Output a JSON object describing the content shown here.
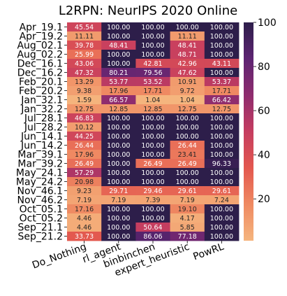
{
  "chart_data": {
    "type": "heatmap",
    "title": "L2RPN: NeurIPS 2020 Online",
    "xlabel": "",
    "ylabel": "",
    "columns": [
      "Do_Nothing",
      "rl_agent",
      "binbinchen",
      "expert_heuristic",
      "PowRL"
    ],
    "rows": [
      "Apr_19.1",
      "Apr_19.2",
      "Aug_02.1",
      "Aug_02.2",
      "Dec_16.1",
      "Dec_16.2",
      "Feb_20.1",
      "Feb_20.2",
      "Jan_32.1",
      "Jan_32.2",
      "Jul_28.1",
      "Jul_28.2",
      "Jun_14.1",
      "Jun_14.2",
      "Mar_39.1",
      "Mar_39.2",
      "May_24.1",
      "May_24.2",
      "Nov_46.1",
      "Nov_46.2",
      "Oct_05.1",
      "Oct_05.2",
      "Sep_21.1",
      "Sep_21.2"
    ],
    "values": [
      [
        45.54,
        100.0,
        100.0,
        100.0,
        100.0
      ],
      [
        11.11,
        100.0,
        100.0,
        11.11,
        100.0
      ],
      [
        39.78,
        48.41,
        100.0,
        48.41,
        100.0
      ],
      [
        25.99,
        100.0,
        100.0,
        48.71,
        100.0
      ],
      [
        43.06,
        100.0,
        42.81,
        42.96,
        43.11
      ],
      [
        47.32,
        80.21,
        79.56,
        47.62,
        100.0
      ],
      [
        13.29,
        53.77,
        53.52,
        10.91,
        53.37
      ],
      [
        9.38,
        17.96,
        17.71,
        9.72,
        17.71
      ],
      [
        1.59,
        66.57,
        1.04,
        1.04,
        66.42
      ],
      [
        12.75,
        12.85,
        12.85,
        12.75,
        12.75
      ],
      [
        46.83,
        100.0,
        100.0,
        100.0,
        100.0
      ],
      [
        10.12,
        100.0,
        100.0,
        100.0,
        100.0
      ],
      [
        44.25,
        100.0,
        100.0,
        100.0,
        100.0
      ],
      [
        26.44,
        100.0,
        100.0,
        26.44,
        100.0
      ],
      [
        17.96,
        100.0,
        100.0,
        23.41,
        100.0
      ],
      [
        26.49,
        100.0,
        26.49,
        26.49,
        96.33
      ],
      [
        57.29,
        100.0,
        100.0,
        100.0,
        100.0
      ],
      [
        20.98,
        100.0,
        100.0,
        100.0,
        100.0
      ],
      [
        9.23,
        29.71,
        29.46,
        29.61,
        29.61
      ],
      [
        7.19,
        7.19,
        7.39,
        7.19,
        7.24
      ],
      [
        17.16,
        100.0,
        100.0,
        19.1,
        100.0
      ],
      [
        4.46,
        100.0,
        100.0,
        4.17,
        100.0
      ],
      [
        4.46,
        100.0,
        50.64,
        5.85,
        100.0
      ],
      [
        33.73,
        100.0,
        86.06,
        77.18,
        100.0
      ]
    ],
    "colorbar": {
      "ticks": [
        "20",
        "40",
        "60",
        "80",
        "100"
      ],
      "range": [
        1.04,
        100
      ],
      "colors": [
        "#f5b57e",
        "#ef8a62",
        "#e3584f",
        "#c53d60",
        "#8e2c6e",
        "#5d2472",
        "#2d1e4a"
      ]
    },
    "grid": false,
    "legend": "colorbar-right"
  }
}
